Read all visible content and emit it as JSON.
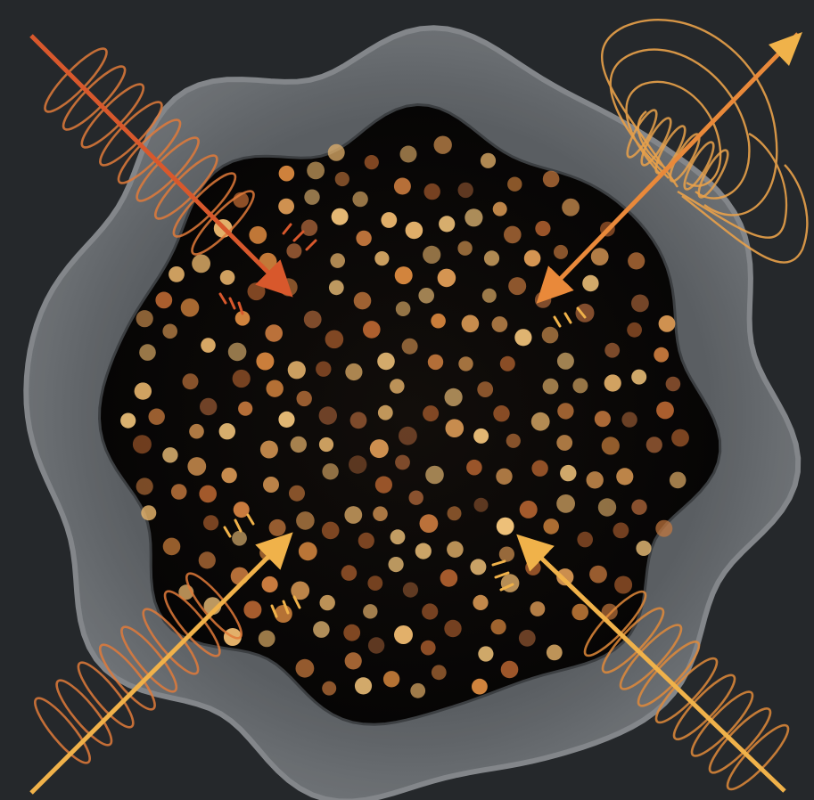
{
  "colors": {
    "background": "#25282b",
    "shell": "#6a6e72",
    "shell_edge": "#8b8f93",
    "core": "#0d0b0a",
    "particle_palette": [
      "#c87a3e",
      "#dc9a55",
      "#e7b46c",
      "#b0612f",
      "#8c5330",
      "#d9883f",
      "#f0c27a"
    ],
    "beam_red": "#d8582c",
    "beam_orange": "#e9893a",
    "beam_gold": "#f0b24a",
    "coil": "#e07a3a"
  },
  "scene": {
    "beams": [
      {
        "name": "upper-left-beam",
        "color": "beam_red"
      },
      {
        "name": "upper-right-beam",
        "color": "beam_orange"
      },
      {
        "name": "lower-left-beam",
        "color": "beam_gold"
      },
      {
        "name": "lower-right-beam",
        "color": "beam_gold"
      }
    ]
  }
}
